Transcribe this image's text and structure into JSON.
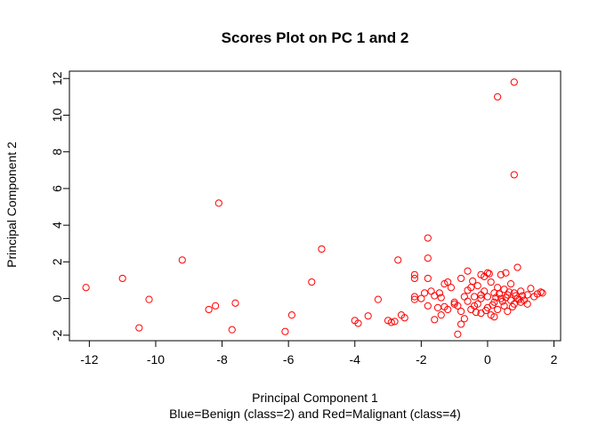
{
  "chart_data": {
    "type": "scatter",
    "title": "Scores Plot on PC 1 and 2",
    "xlabel": "Principal Component 1",
    "ylabel": "Principal Component 2",
    "subtitle": "Blue=Benign (class=2) and Red=Malignant (class=4)",
    "xlim": [
      -12.6,
      2.2
    ],
    "ylim": [
      -2.3,
      12.4
    ],
    "xticks": [
      -12,
      -10,
      -8,
      -6,
      -4,
      -2,
      0,
      2
    ],
    "yticks": [
      -2,
      0,
      2,
      4,
      6,
      8,
      10,
      12
    ],
    "xtick_labels": [
      "-12",
      "-10",
      "-8",
      "-6",
      "-4",
      "-2",
      "0",
      "2"
    ],
    "ytick_labels": [
      "-2",
      "0",
      "2",
      "4",
      "6",
      "8",
      "10",
      "12"
    ],
    "grid": false,
    "marker": "open-circle",
    "point_color": "#ff0000",
    "series": [
      {
        "color": "#ff0000",
        "points": [
          [
            0.8,
            11.8
          ],
          [
            0.3,
            11.0
          ],
          [
            0.8,
            6.75
          ],
          [
            -8.1,
            5.2
          ],
          [
            -1.8,
            3.3
          ],
          [
            -5.0,
            2.7
          ],
          [
            -9.2,
            2.1
          ],
          [
            -2.7,
            2.1
          ],
          [
            -1.8,
            2.2
          ],
          [
            0.9,
            1.7
          ],
          [
            -0.6,
            1.5
          ],
          [
            -11.0,
            1.1
          ],
          [
            -5.3,
            0.9
          ],
          [
            -12.1,
            0.6
          ],
          [
            -10.2,
            -0.05
          ],
          [
            -8.2,
            -0.4
          ],
          [
            -8.4,
            -0.6
          ],
          [
            -7.6,
            -0.25
          ],
          [
            -10.5,
            -1.6
          ],
          [
            -7.7,
            -1.7
          ],
          [
            -6.1,
            -1.8
          ],
          [
            -5.9,
            -0.9
          ],
          [
            -4.0,
            -1.2
          ],
          [
            -3.9,
            -1.35
          ],
          [
            -3.6,
            -0.95
          ],
          [
            -3.3,
            -0.05
          ],
          [
            -3.0,
            -1.2
          ],
          [
            -2.9,
            -1.3
          ],
          [
            -2.8,
            -1.25
          ],
          [
            -2.6,
            -0.9
          ],
          [
            -2.5,
            -1.05
          ],
          [
            -2.2,
            1.3
          ],
          [
            -2.2,
            1.1
          ],
          [
            -2.2,
            0.1
          ],
          [
            -2.2,
            -0.05
          ],
          [
            -1.9,
            0.3
          ],
          [
            -1.8,
            1.1
          ],
          [
            -1.7,
            0.4
          ],
          [
            -1.6,
            0.15
          ],
          [
            -1.5,
            -0.5
          ],
          [
            -1.4,
            0.05
          ],
          [
            -1.3,
            0.8
          ],
          [
            -1.2,
            0.9
          ],
          [
            -1.1,
            0.6
          ],
          [
            -1.0,
            -0.2
          ],
          [
            -0.9,
            -1.95
          ],
          [
            -0.8,
            -1.4
          ],
          [
            -0.7,
            -1.1
          ],
          [
            -0.6,
            0.45
          ],
          [
            -0.5,
            0.6
          ],
          [
            -0.5,
            -0.6
          ],
          [
            -0.4,
            0.1
          ],
          [
            -0.3,
            -0.3
          ],
          [
            -0.3,
            0.7
          ],
          [
            -0.2,
            -0.8
          ],
          [
            -0.2,
            0.2
          ],
          [
            -0.1,
            1.2
          ],
          [
            -0.1,
            0.4
          ],
          [
            0.0,
            -0.5
          ],
          [
            0.0,
            1.4
          ],
          [
            0.1,
            0.9
          ],
          [
            0.1,
            -0.9
          ],
          [
            0.2,
            0.3
          ],
          [
            0.2,
            -0.2
          ],
          [
            0.3,
            0.6
          ],
          [
            0.3,
            -0.6
          ],
          [
            0.4,
            1.3
          ],
          [
            0.4,
            0.0
          ],
          [
            0.5,
            -0.4
          ],
          [
            0.5,
            0.5
          ],
          [
            0.6,
            0.2
          ],
          [
            0.6,
            -0.7
          ],
          [
            0.7,
            0.8
          ],
          [
            0.7,
            -0.1
          ],
          [
            0.8,
            0.3
          ],
          [
            0.8,
            -0.3
          ],
          [
            0.9,
            0.0
          ],
          [
            1.0,
            -0.2
          ],
          [
            1.0,
            0.4
          ],
          [
            1.1,
            -0.1
          ],
          [
            1.2,
            0.2
          ],
          [
            1.2,
            -0.3
          ],
          [
            1.3,
            0.55
          ],
          [
            1.4,
            0.1
          ],
          [
            1.5,
            0.25
          ],
          [
            1.6,
            0.35
          ],
          [
            1.65,
            0.3
          ],
          [
            -1.4,
            -0.9
          ],
          [
            -1.2,
            -0.6
          ],
          [
            -1.0,
            -0.3
          ],
          [
            -0.8,
            -0.7
          ],
          [
            -0.7,
            0.1
          ],
          [
            -0.6,
            -0.15
          ],
          [
            -0.4,
            -0.4
          ],
          [
            -0.2,
            0.0
          ],
          [
            0.0,
            0.1
          ],
          [
            0.15,
            -0.35
          ],
          [
            0.25,
            0.05
          ],
          [
            0.35,
            0.25
          ],
          [
            0.45,
            -0.15
          ],
          [
            0.55,
            0.05
          ],
          [
            0.65,
            0.35
          ],
          [
            0.75,
            -0.45
          ],
          [
            0.85,
            0.15
          ],
          [
            0.95,
            -0.05
          ],
          [
            1.05,
            0.15
          ],
          [
            -1.8,
            -0.4
          ],
          [
            -1.6,
            -1.15
          ],
          [
            -2.0,
            0.0
          ],
          [
            -1.3,
            -0.45
          ],
          [
            -0.9,
            -0.4
          ],
          [
            -0.35,
            -0.75
          ],
          [
            -0.05,
            -0.65
          ],
          [
            0.2,
            -1.0
          ],
          [
            -0.8,
            1.1
          ],
          [
            -0.2,
            1.3
          ],
          [
            0.05,
            1.35
          ],
          [
            0.55,
            1.4
          ],
          [
            -0.45,
            0.95
          ],
          [
            -1.45,
            0.3
          ]
        ]
      }
    ]
  }
}
